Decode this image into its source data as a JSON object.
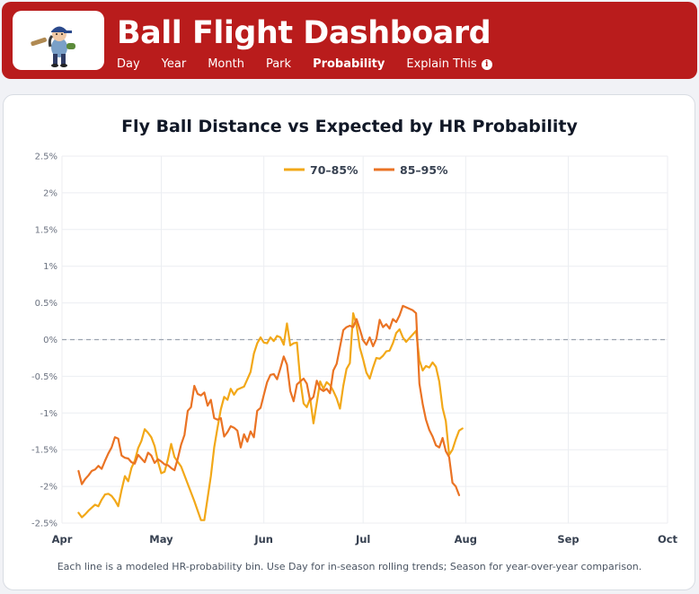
{
  "header": {
    "title": "Ball Flight Dashboard",
    "nav": [
      "Day",
      "Year",
      "Month",
      "Park",
      "Probability",
      "Explain This"
    ],
    "active_nav": "Probability",
    "brand_color": "#b91c1c"
  },
  "chart_data": {
    "type": "line",
    "title": "Fly Ball Distance vs Expected by HR Probability",
    "xlabel": "",
    "ylabel": "",
    "x_ticks": [
      "Apr",
      "May",
      "Jun",
      "Jul",
      "Aug",
      "Sep",
      "Oct"
    ],
    "y_ticks": [
      "2.5%",
      "2%",
      "1.5%",
      "1%",
      "0.5%",
      "0%",
      "-0.5%",
      "-1%",
      "-1.5%",
      "-2%",
      "-2.5%"
    ],
    "ylim": [
      -2.5,
      2.5
    ],
    "xlim": [
      "2024-04-01",
      "2024-10-01"
    ],
    "grid": true,
    "legend": "top-center",
    "reference_line": 0,
    "series": [
      {
        "name": "70–85%",
        "color": "#f2a818",
        "points": [
          [
            "2024-04-06",
            -2.36
          ],
          [
            "2024-04-07",
            -2.42
          ],
          [
            "2024-04-08",
            -2.38
          ],
          [
            "2024-04-09",
            -2.33
          ],
          [
            "2024-04-10",
            -2.29
          ],
          [
            "2024-04-11",
            -2.25
          ],
          [
            "2024-04-12",
            -2.27
          ],
          [
            "2024-04-13",
            -2.18
          ],
          [
            "2024-04-14",
            -2.11
          ],
          [
            "2024-04-15",
            -2.1
          ],
          [
            "2024-04-16",
            -2.13
          ],
          [
            "2024-04-17",
            -2.19
          ],
          [
            "2024-04-18",
            -2.27
          ],
          [
            "2024-04-19",
            -2.05
          ],
          [
            "2024-04-20",
            -1.86
          ],
          [
            "2024-04-21",
            -1.93
          ],
          [
            "2024-04-22",
            -1.75
          ],
          [
            "2024-04-23",
            -1.65
          ],
          [
            "2024-04-24",
            -1.48
          ],
          [
            "2024-04-25",
            -1.38
          ],
          [
            "2024-04-26",
            -1.22
          ],
          [
            "2024-04-27",
            -1.27
          ],
          [
            "2024-04-28",
            -1.33
          ],
          [
            "2024-04-29",
            -1.45
          ],
          [
            "2024-04-30",
            -1.66
          ],
          [
            "2024-05-01",
            -1.82
          ],
          [
            "2024-05-02",
            -1.8
          ],
          [
            "2024-05-03",
            -1.63
          ],
          [
            "2024-05-04",
            -1.42
          ],
          [
            "2024-05-05",
            -1.6
          ],
          [
            "2024-05-07",
            -1.73
          ],
          [
            "2024-05-11",
            -2.2
          ],
          [
            "2024-05-13",
            -2.46
          ],
          [
            "2024-05-14",
            -2.46
          ],
          [
            "2024-05-16",
            -1.86
          ],
          [
            "2024-05-17",
            -1.47
          ],
          [
            "2024-05-18",
            -1.2
          ],
          [
            "2024-05-19",
            -0.95
          ],
          [
            "2024-05-20",
            -0.78
          ],
          [
            "2024-05-21",
            -0.82
          ],
          [
            "2024-05-22",
            -0.67
          ],
          [
            "2024-05-23",
            -0.75
          ],
          [
            "2024-05-24",
            -0.68
          ],
          [
            "2024-05-25",
            -0.66
          ],
          [
            "2024-05-26",
            -0.64
          ],
          [
            "2024-05-27",
            -0.54
          ],
          [
            "2024-05-28",
            -0.44
          ],
          [
            "2024-05-29",
            -0.19
          ],
          [
            "2024-05-30",
            -0.05
          ],
          [
            "2024-05-31",
            0.03
          ],
          [
            "2024-06-01",
            -0.04
          ],
          [
            "2024-06-02",
            -0.05
          ],
          [
            "2024-06-03",
            0.03
          ],
          [
            "2024-06-04",
            -0.02
          ],
          [
            "2024-06-05",
            0.05
          ],
          [
            "2024-06-06",
            0.03
          ],
          [
            "2024-06-07",
            -0.07
          ],
          [
            "2024-06-08",
            0.22
          ],
          [
            "2024-06-09",
            -0.08
          ],
          [
            "2024-06-10",
            -0.05
          ],
          [
            "2024-06-11",
            -0.04
          ],
          [
            "2024-06-12",
            -0.55
          ],
          [
            "2024-06-13",
            -0.87
          ],
          [
            "2024-06-14",
            -0.92
          ],
          [
            "2024-06-15",
            -0.8
          ],
          [
            "2024-06-16",
            -1.14
          ],
          [
            "2024-06-17",
            -0.86
          ],
          [
            "2024-06-18",
            -0.57
          ],
          [
            "2024-06-19",
            -0.67
          ],
          [
            "2024-06-20",
            -0.58
          ],
          [
            "2024-06-21",
            -0.62
          ],
          [
            "2024-06-22",
            -0.7
          ],
          [
            "2024-06-23",
            -0.8
          ],
          [
            "2024-06-24",
            -0.94
          ],
          [
            "2024-06-25",
            -0.63
          ],
          [
            "2024-06-26",
            -0.4
          ],
          [
            "2024-06-27",
            -0.32
          ],
          [
            "2024-06-28",
            0.36
          ],
          [
            "2024-06-29",
            0.2
          ],
          [
            "2024-06-30",
            -0.11
          ],
          [
            "2024-07-01",
            -0.27
          ],
          [
            "2024-07-02",
            -0.45
          ],
          [
            "2024-07-03",
            -0.53
          ],
          [
            "2024-07-04",
            -0.38
          ],
          [
            "2024-07-05",
            -0.25
          ],
          [
            "2024-07-06",
            -0.26
          ],
          [
            "2024-07-07",
            -0.22
          ],
          [
            "2024-07-08",
            -0.16
          ],
          [
            "2024-07-09",
            -0.15
          ],
          [
            "2024-07-10",
            -0.05
          ],
          [
            "2024-07-11",
            0.09
          ],
          [
            "2024-07-12",
            0.14
          ],
          [
            "2024-07-13",
            0.03
          ],
          [
            "2024-07-14",
            -0.03
          ],
          [
            "2024-07-17",
            0.12
          ],
          [
            "2024-07-18",
            -0.28
          ],
          [
            "2024-07-19",
            -0.42
          ],
          [
            "2024-07-20",
            -0.36
          ],
          [
            "2024-07-21",
            -0.38
          ],
          [
            "2024-07-22",
            -0.31
          ],
          [
            "2024-07-23",
            -0.37
          ],
          [
            "2024-07-24",
            -0.57
          ],
          [
            "2024-07-25",
            -0.93
          ],
          [
            "2024-07-26",
            -1.11
          ],
          [
            "2024-07-27",
            -1.57
          ],
          [
            "2024-07-28",
            -1.5
          ],
          [
            "2024-07-29",
            -1.36
          ],
          [
            "2024-07-30",
            -1.24
          ],
          [
            "2024-07-31",
            -1.21
          ]
        ]
      },
      {
        "name": "85–95%",
        "color": "#ea7324",
        "points": [
          [
            "2024-04-06",
            -1.79
          ],
          [
            "2024-04-07",
            -1.97
          ],
          [
            "2024-04-08",
            -1.9
          ],
          [
            "2024-04-09",
            -1.85
          ],
          [
            "2024-04-10",
            -1.79
          ],
          [
            "2024-04-11",
            -1.77
          ],
          [
            "2024-04-12",
            -1.72
          ],
          [
            "2024-04-13",
            -1.76
          ],
          [
            "2024-04-14",
            -1.65
          ],
          [
            "2024-04-15",
            -1.55
          ],
          [
            "2024-04-16",
            -1.47
          ],
          [
            "2024-04-17",
            -1.33
          ],
          [
            "2024-04-18",
            -1.35
          ],
          [
            "2024-04-19",
            -1.58
          ],
          [
            "2024-04-20",
            -1.61
          ],
          [
            "2024-04-21",
            -1.62
          ],
          [
            "2024-04-22",
            -1.67
          ],
          [
            "2024-04-23",
            -1.69
          ],
          [
            "2024-04-24",
            -1.57
          ],
          [
            "2024-04-25",
            -1.62
          ],
          [
            "2024-04-26",
            -1.67
          ],
          [
            "2024-04-27",
            -1.54
          ],
          [
            "2024-04-28",
            -1.58
          ],
          [
            "2024-04-29",
            -1.68
          ],
          [
            "2024-04-30",
            -1.63
          ],
          [
            "2024-05-01",
            -1.66
          ],
          [
            "2024-05-02",
            -1.7
          ],
          [
            "2024-05-03",
            -1.71
          ],
          [
            "2024-05-04",
            -1.75
          ],
          [
            "2024-05-05",
            -1.78
          ],
          [
            "2024-05-06",
            -1.62
          ],
          [
            "2024-05-07",
            -1.43
          ],
          [
            "2024-05-08",
            -1.3
          ],
          [
            "2024-05-09",
            -0.97
          ],
          [
            "2024-05-10",
            -0.92
          ],
          [
            "2024-05-11",
            -0.63
          ],
          [
            "2024-05-12",
            -0.74
          ],
          [
            "2024-05-13",
            -0.76
          ],
          [
            "2024-05-14",
            -0.72
          ],
          [
            "2024-05-15",
            -0.9
          ],
          [
            "2024-05-16",
            -0.82
          ],
          [
            "2024-05-17",
            -1.07
          ],
          [
            "2024-05-18",
            -1.09
          ],
          [
            "2024-05-19",
            -1.07
          ],
          [
            "2024-05-20",
            -1.32
          ],
          [
            "2024-05-21",
            -1.26
          ],
          [
            "2024-05-22",
            -1.18
          ],
          [
            "2024-05-23",
            -1.2
          ],
          [
            "2024-05-24",
            -1.24
          ],
          [
            "2024-05-25",
            -1.47
          ],
          [
            "2024-05-26",
            -1.29
          ],
          [
            "2024-05-27",
            -1.39
          ],
          [
            "2024-05-28",
            -1.25
          ],
          [
            "2024-05-29",
            -1.33
          ],
          [
            "2024-05-30",
            -0.97
          ],
          [
            "2024-05-31",
            -0.93
          ],
          [
            "2024-06-01",
            -0.75
          ],
          [
            "2024-06-02",
            -0.58
          ],
          [
            "2024-06-03",
            -0.48
          ],
          [
            "2024-06-04",
            -0.47
          ],
          [
            "2024-06-05",
            -0.54
          ],
          [
            "2024-06-06",
            -0.39
          ],
          [
            "2024-06-07",
            -0.23
          ],
          [
            "2024-06-08",
            -0.34
          ],
          [
            "2024-06-09",
            -0.7
          ],
          [
            "2024-06-10",
            -0.84
          ],
          [
            "2024-06-11",
            -0.61
          ],
          [
            "2024-06-12",
            -0.57
          ],
          [
            "2024-06-13",
            -0.53
          ],
          [
            "2024-06-14",
            -0.6
          ],
          [
            "2024-06-15",
            -0.83
          ],
          [
            "2024-06-16",
            -0.78
          ],
          [
            "2024-06-17",
            -0.56
          ],
          [
            "2024-06-18",
            -0.67
          ],
          [
            "2024-06-19",
            -0.7
          ],
          [
            "2024-06-20",
            -0.67
          ],
          [
            "2024-06-21",
            -0.73
          ],
          [
            "2024-06-22",
            -0.42
          ],
          [
            "2024-06-23",
            -0.33
          ],
          [
            "2024-06-24",
            -0.1
          ],
          [
            "2024-06-25",
            0.13
          ],
          [
            "2024-06-26",
            0.17
          ],
          [
            "2024-06-27",
            0.19
          ],
          [
            "2024-06-28",
            0.17
          ],
          [
            "2024-06-29",
            0.28
          ],
          [
            "2024-06-30",
            0.14
          ],
          [
            "2024-07-01",
            -0.01
          ],
          [
            "2024-07-02",
            -0.07
          ],
          [
            "2024-07-03",
            0.03
          ],
          [
            "2024-07-04",
            -0.09
          ],
          [
            "2024-07-05",
            0.01
          ],
          [
            "2024-07-06",
            0.27
          ],
          [
            "2024-07-07",
            0.17
          ],
          [
            "2024-07-08",
            0.21
          ],
          [
            "2024-07-09",
            0.15
          ],
          [
            "2024-07-10",
            0.28
          ],
          [
            "2024-07-11",
            0.24
          ],
          [
            "2024-07-12",
            0.33
          ],
          [
            "2024-07-13",
            0.46
          ],
          [
            "2024-07-16",
            0.4
          ],
          [
            "2024-07-17",
            0.36
          ],
          [
            "2024-07-18",
            -0.6
          ],
          [
            "2024-07-19",
            -0.88
          ],
          [
            "2024-07-20",
            -1.09
          ],
          [
            "2024-07-21",
            -1.23
          ],
          [
            "2024-07-22",
            -1.32
          ],
          [
            "2024-07-23",
            -1.44
          ],
          [
            "2024-07-24",
            -1.47
          ],
          [
            "2024-07-25",
            -1.34
          ],
          [
            "2024-07-26",
            -1.52
          ],
          [
            "2024-07-27",
            -1.6
          ],
          [
            "2024-07-28",
            -1.95
          ],
          [
            "2024-07-29",
            -2.0
          ],
          [
            "2024-07-30",
            -2.12
          ]
        ]
      }
    ]
  },
  "footnote": "Each line is a modeled HR-probability bin. Use Day for in-season rolling trends; Season for year-over-year comparison."
}
